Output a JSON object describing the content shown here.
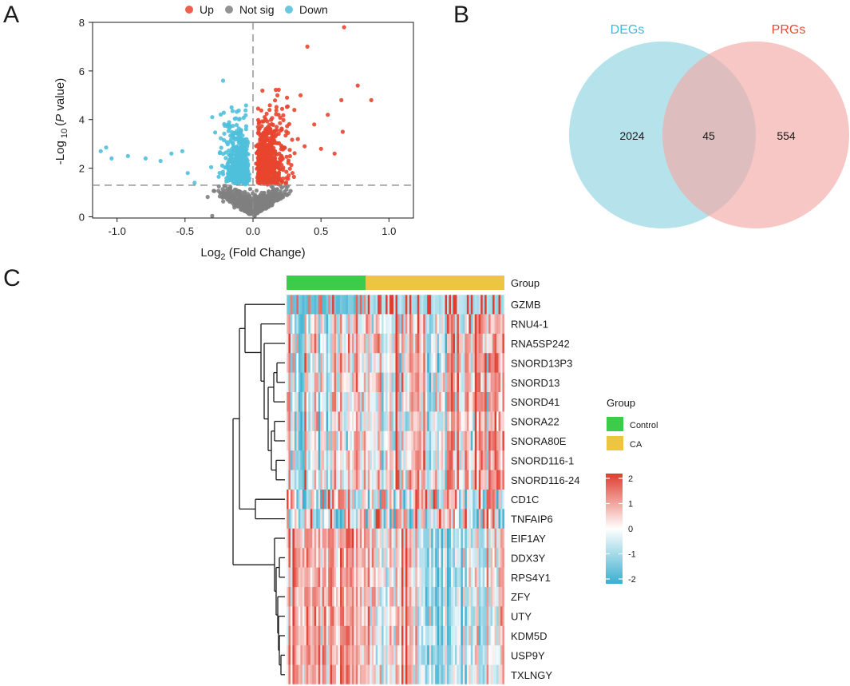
{
  "panels": {
    "a": "A",
    "b": "B",
    "c": "C"
  },
  "colors": {
    "up": "#E8452F",
    "not_sig": "#808080",
    "down": "#4FC0DB",
    "degs_circle": "#A9DDE8",
    "prgs_circle": "#F3A9A6",
    "control": "#3CCB4B",
    "ca": "#EEC540",
    "high": "#E03C2F",
    "mid": "#FFFFFF",
    "low": "#3AAFCF"
  },
  "chart_data": [
    {
      "type": "scatter",
      "name": "volcano",
      "legend": [
        "Up",
        "Not sig",
        "Down"
      ],
      "xlabel": "Log2 (Fold Change)",
      "xlabel_base": "Log",
      "xlabel_sub": "2",
      "xlabel_rest": " (Fold Change)",
      "ylabel": "-Log 10 (P value)",
      "xlim": [
        -1.18,
        1.18
      ],
      "ylim": [
        -0.05,
        8.0
      ],
      "xticks": [
        -1.0,
        -0.5,
        0.0,
        0.5,
        1.0
      ],
      "xtick_labels": [
        "-1.0",
        "-0.5",
        "0.0",
        "0.5",
        "1.0"
      ],
      "yticks": [
        0,
        2,
        4,
        6,
        8
      ],
      "ytick_labels": [
        "0",
        "2",
        "4",
        "6",
        "8"
      ],
      "pvalue_threshold_line": 1.3,
      "fc_threshold_line": 0.0,
      "highlight_points_up": [
        [
          0.67,
          7.8
        ],
        [
          0.4,
          7.0
        ],
        [
          0.77,
          5.4
        ],
        [
          0.87,
          4.8
        ],
        [
          0.65,
          4.8
        ],
        [
          0.35,
          5.0
        ],
        [
          0.25,
          4.9
        ],
        [
          0.55,
          4.2
        ],
        [
          0.45,
          3.8
        ],
        [
          0.66,
          3.5
        ],
        [
          0.6,
          2.6
        ],
        [
          0.5,
          2.8
        ],
        [
          0.33,
          3.2
        ],
        [
          0.38,
          2.9
        ]
      ],
      "highlight_points_down": [
        [
          -1.12,
          2.7
        ],
        [
          -1.08,
          2.85
        ],
        [
          -1.04,
          2.4
        ],
        [
          -0.92,
          2.5
        ],
        [
          -0.79,
          2.4
        ],
        [
          -0.68,
          2.3
        ],
        [
          -0.6,
          2.6
        ],
        [
          -0.52,
          2.7
        ],
        [
          -0.48,
          1.8
        ],
        [
          -0.43,
          1.4
        ],
        [
          -0.22,
          5.6
        ],
        [
          -0.3,
          4.1
        ]
      ]
    },
    {
      "type": "venn",
      "name": "venn",
      "sets": [
        "DEGs",
        "PRGs"
      ],
      "only_a": 2024,
      "intersection": 45,
      "only_b": 554,
      "labels": {
        "degs": "DEGs",
        "prgs": "PRGs",
        "only_a": "2024",
        "both": "45",
        "only_b": "554"
      }
    },
    {
      "type": "heatmap",
      "name": "expression-heatmap",
      "group_label": "Group",
      "legend_title": "Group",
      "groups": [
        "Control",
        "CA"
      ],
      "control_fraction": 0.36,
      "genes": [
        "GZMB",
        "RNU4-1",
        "RNA5SP242",
        "SNORD13P3",
        "SNORD13",
        "SNORD41",
        "SNORA22",
        "SNORA80E",
        "SNORD116-1",
        "SNORD116-24",
        "CD1C",
        "TNFAIP6",
        "EIF1AY",
        "DDX3Y",
        "RPS4Y1",
        "ZFY",
        "UTY",
        "KDM5D",
        "USP9Y",
        "TXLNGY"
      ],
      "gene_bias": [
        0.3,
        0.0,
        0.1,
        0.05,
        0.05,
        0.0,
        -0.05,
        0.0,
        0.05,
        0.05,
        0.1,
        -0.2,
        0.6,
        0.55,
        0.5,
        0.5,
        0.45,
        0.5,
        0.5,
        0.45
      ],
      "colorbar_range": [
        -2,
        2
      ],
      "colorbar_ticks": [
        2,
        1,
        0,
        -1,
        -2
      ],
      "colorbar_tick_labels": [
        "2",
        "1",
        "0",
        "-1",
        "-2"
      ]
    }
  ]
}
